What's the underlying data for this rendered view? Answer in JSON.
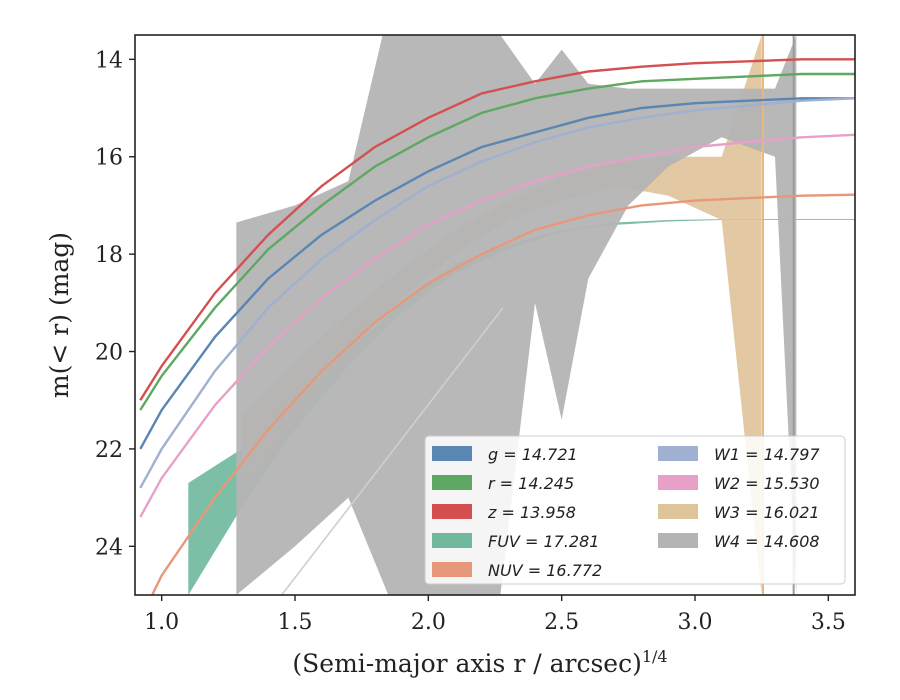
{
  "chart_data": {
    "type": "line",
    "xlabel": "(Semi-major axis r / arcsec)",
    "xlabel_exponent": "1/4",
    "ylabel": "m(< r) (mag)",
    "xlim": [
      0.9,
      3.6
    ],
    "ylim": [
      25.0,
      13.5
    ],
    "x_ticks": [
      "1.0",
      "1.5",
      "2.0",
      "2.5",
      "3.0",
      "3.5"
    ],
    "y_ticks": [
      "14",
      "16",
      "18",
      "20",
      "22",
      "24"
    ],
    "legend_position": "lower-right",
    "series": [
      {
        "key": "g",
        "name": "g = 14.721",
        "color": "#5a86b3",
        "type": "line",
        "x": [
          0.92,
          1.0,
          1.2,
          1.4,
          1.6,
          1.8,
          2.0,
          2.2,
          2.4,
          2.6,
          2.8,
          3.0,
          3.2,
          3.4,
          3.6
        ],
        "y": [
          22.0,
          21.2,
          19.7,
          18.5,
          17.6,
          16.9,
          16.3,
          15.8,
          15.5,
          15.2,
          15.0,
          14.9,
          14.85,
          14.8,
          14.8
        ]
      },
      {
        "key": "r",
        "name": "r = 14.245",
        "color": "#5fa862",
        "type": "line",
        "x": [
          0.92,
          1.0,
          1.2,
          1.4,
          1.6,
          1.8,
          2.0,
          2.2,
          2.4,
          2.6,
          2.8,
          3.0,
          3.2,
          3.4,
          3.6
        ],
        "y": [
          21.2,
          20.5,
          19.1,
          17.9,
          17.0,
          16.2,
          15.6,
          15.1,
          14.8,
          14.6,
          14.45,
          14.4,
          14.35,
          14.3,
          14.3
        ]
      },
      {
        "key": "z",
        "name": "z = 13.958",
        "color": "#d45050",
        "type": "line",
        "x": [
          0.92,
          1.0,
          1.2,
          1.4,
          1.6,
          1.8,
          2.0,
          2.2,
          2.4,
          2.6,
          2.8,
          3.0,
          3.2,
          3.4,
          3.6
        ],
        "y": [
          21.0,
          20.3,
          18.8,
          17.6,
          16.6,
          15.8,
          15.2,
          14.7,
          14.45,
          14.25,
          14.15,
          14.08,
          14.04,
          14.0,
          14.0
        ]
      },
      {
        "key": "fuv",
        "name": "FUV = 17.281",
        "color": "#6fb89c",
        "type": "band",
        "x": [
          1.1,
          1.3,
          1.5,
          1.7,
          1.9,
          2.1,
          2.3,
          2.5,
          2.7,
          2.9,
          3.1,
          3.3,
          3.6
        ],
        "y": [
          25.0,
          23.2,
          21.6,
          20.3,
          19.2,
          18.4,
          17.9,
          17.55,
          17.4,
          17.33,
          17.3,
          17.3,
          17.3
        ],
        "y_upper": [
          22.7,
          22.0,
          21.0,
          20.0,
          19.0,
          18.2,
          17.8,
          17.5,
          17.35,
          17.3,
          17.28,
          17.28,
          17.28
        ]
      },
      {
        "key": "nuv",
        "name": "NUV = 16.772",
        "color": "#e8987a",
        "type": "line",
        "x": [
          0.92,
          1.0,
          1.2,
          1.4,
          1.6,
          1.8,
          2.0,
          2.2,
          2.4,
          2.6,
          2.8,
          3.0,
          3.2,
          3.4,
          3.6
        ],
        "y": [
          25.5,
          24.6,
          23.0,
          21.6,
          20.4,
          19.4,
          18.6,
          18.0,
          17.5,
          17.2,
          17.0,
          16.9,
          16.85,
          16.8,
          16.78
        ]
      },
      {
        "key": "w1",
        "name": "W1 = 14.797",
        "color": "#9fb0d0",
        "type": "line",
        "x": [
          0.92,
          1.0,
          1.2,
          1.4,
          1.6,
          1.8,
          2.0,
          2.2,
          2.4,
          2.6,
          2.8,
          3.0,
          3.2,
          3.4,
          3.6
        ],
        "y": [
          22.8,
          22.0,
          20.4,
          19.1,
          18.1,
          17.3,
          16.6,
          16.1,
          15.7,
          15.4,
          15.2,
          15.05,
          14.95,
          14.85,
          14.8
        ]
      },
      {
        "key": "w2",
        "name": "W2 = 15.530",
        "color": "#e7a0c8",
        "type": "line",
        "x": [
          0.92,
          1.0,
          1.2,
          1.4,
          1.6,
          1.8,
          2.0,
          2.2,
          2.4,
          2.6,
          2.8,
          3.0,
          3.2,
          3.4,
          3.6
        ],
        "y": [
          23.4,
          22.6,
          21.1,
          19.9,
          18.9,
          18.1,
          17.4,
          16.9,
          16.5,
          16.2,
          16.0,
          15.8,
          15.7,
          15.6,
          15.55
        ]
      },
      {
        "key": "w3",
        "name": "W3 = 16.021",
        "color": "#dfc39a",
        "type": "band",
        "x": [
          1.3,
          1.5,
          1.7,
          1.9,
          2.1,
          2.3,
          2.5,
          2.7,
          2.9,
          3.1,
          3.25
        ],
        "y": [
          22.9,
          21.4,
          20.0,
          18.9,
          18.0,
          17.3,
          16.9,
          16.6,
          16.8,
          17.3,
          25.0
        ],
        "y_upper": [
          21.3,
          20.2,
          19.2,
          18.3,
          17.5,
          16.9,
          16.4,
          16.1,
          16.0,
          16.0,
          13.5
        ]
      },
      {
        "key": "w4",
        "name": "W4 = 14.608",
        "color": "#b4b4b4",
        "type": "band",
        "x": [
          1.28,
          1.5,
          1.7,
          1.85,
          2.0,
          2.2,
          2.27,
          2.4,
          2.5,
          2.6,
          2.75,
          2.9,
          3.1,
          3.3,
          3.38
        ],
        "y": [
          25.0,
          24.0,
          23.0,
          25.0,
          25.0,
          25.0,
          25.0,
          19.0,
          21.4,
          18.5,
          17.0,
          16.2,
          15.6,
          16.0,
          25.0
        ],
        "y_upper": [
          17.35,
          17.0,
          16.5,
          13.0,
          13.5,
          13.5,
          13.5,
          14.5,
          13.8,
          14.5,
          14.6,
          14.6,
          14.6,
          14.6,
          13.5
        ]
      }
    ],
    "legend": [
      {
        "label": "g = 14.721",
        "color": "#5a86b3"
      },
      {
        "label": "r = 14.245",
        "color": "#5fa862"
      },
      {
        "label": "z = 13.958",
        "color": "#d45050"
      },
      {
        "label": "FUV = 17.281",
        "color": "#6fb89c"
      },
      {
        "label": "NUV = 16.772",
        "color": "#e8987a"
      },
      {
        "label": "W1 = 14.797",
        "color": "#9fb0d0"
      },
      {
        "label": "W2 = 15.530",
        "color": "#e7a0c8"
      },
      {
        "label": "W3 = 16.021",
        "color": "#dfc39a"
      },
      {
        "label": "W4 = 14.608",
        "color": "#b4b4b4"
      }
    ]
  }
}
